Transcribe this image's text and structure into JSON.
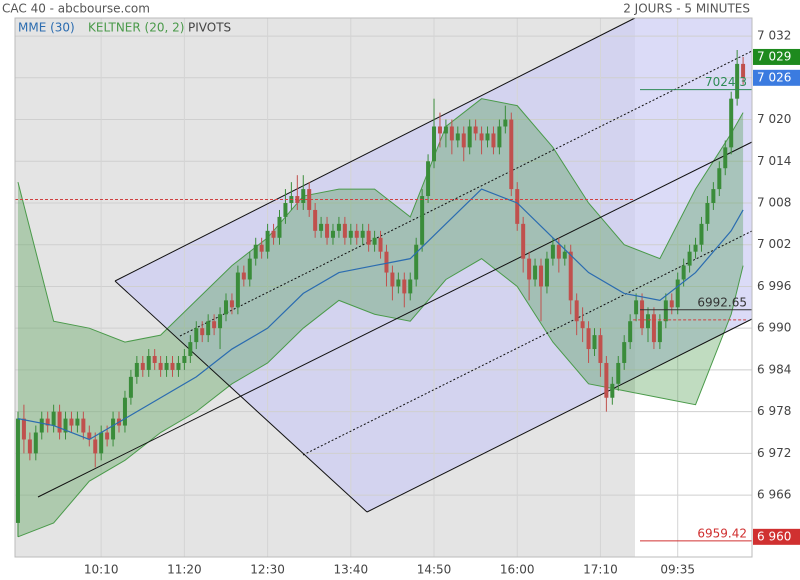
{
  "chart_data": {
    "type": "candlestick",
    "title": "CAC 40 - abcbourse.com",
    "subtitle": "2 JOURS - 5 MINUTES",
    "xlim": [
      -0.5,
      123.5
    ],
    "xticks": [
      {
        "value": 14,
        "label": "10:10"
      },
      {
        "value": 28,
        "label": "11:20"
      },
      {
        "value": 42,
        "label": "12:30"
      },
      {
        "value": 56,
        "label": "13:40"
      },
      {
        "value": 70,
        "label": "14:50"
      },
      {
        "value": 84,
        "label": "16:00"
      },
      {
        "value": 98,
        "label": "17:10"
      },
      {
        "value": 111,
        "label": "09:35"
      }
    ],
    "ylim": [
      6957.1,
      7034.6
    ],
    "yticks": [
      {
        "value": 6966,
        "label": "6 966"
      },
      {
        "value": 6972,
        "label": "6 972"
      },
      {
        "value": 6978,
        "label": "6 978"
      },
      {
        "value": 6984,
        "label": "6 984"
      },
      {
        "value": 6990,
        "label": "6 990"
      },
      {
        "value": 6996,
        "label": "6 996"
      },
      {
        "value": 7002,
        "label": "7 002"
      },
      {
        "value": 7008,
        "label": "7 008"
      },
      {
        "value": 7014,
        "label": "7 014"
      },
      {
        "value": 7020,
        "label": "7 020"
      },
      {
        "value": 7026,
        "label": "7 026"
      },
      {
        "value": 7032,
        "label": "7 032"
      }
    ],
    "grid": true,
    "up_color": "#3a8c3a",
    "down_color": "#c0504d",
    "candles": [
      [
        6962,
        6978,
        6960,
        6977
      ],
      [
        6977,
        6979,
        6972,
        6974
      ],
      [
        6974,
        6975,
        6971,
        6972
      ],
      [
        6972,
        6976,
        6971,
        6975
      ],
      [
        6975,
        6978,
        6974,
        6977
      ],
      [
        6977,
        6978,
        6975,
        6976
      ],
      [
        6976,
        6979,
        6975,
        6978
      ],
      [
        6978,
        6979,
        6974,
        6975
      ],
      [
        6975,
        6978,
        6974,
        6977
      ],
      [
        6977,
        6978,
        6975,
        6976
      ],
      [
        6976,
        6978,
        6975,
        6977
      ],
      [
        6977,
        6978,
        6974,
        6975
      ],
      [
        6975,
        6976,
        6973,
        6974
      ],
      [
        6974,
        6975,
        6970,
        6972
      ],
      [
        6972,
        6976,
        6971,
        6975
      ],
      [
        6975,
        6976,
        6973,
        6974
      ],
      [
        6974,
        6978,
        6973,
        6977
      ],
      [
        6977,
        6978,
        6975,
        6976
      ],
      [
        6976,
        6981,
        6975,
        6980
      ],
      [
        6980,
        6984,
        6979,
        6983
      ],
      [
        6983,
        6986,
        6982,
        6985
      ],
      [
        6985,
        6986,
        6983,
        6984
      ],
      [
        6984,
        6987,
        6983,
        6986
      ],
      [
        6986,
        6987,
        6984,
        6985
      ],
      [
        6985,
        6986,
        6983,
        6984
      ],
      [
        6984,
        6986,
        6983,
        6985
      ],
      [
        6985,
        6986,
        6983,
        6984
      ],
      [
        6984,
        6986,
        6983,
        6985
      ],
      [
        6985,
        6987,
        6984,
        6986
      ],
      [
        6986,
        6989,
        6985,
        6988
      ],
      [
        6988,
        6991,
        6987,
        6990
      ],
      [
        6990,
        6991,
        6988,
        6989
      ],
      [
        6989,
        6992,
        6988,
        6991
      ],
      [
        6991,
        6992,
        6989,
        6990
      ],
      [
        6990,
        6993,
        6987,
        6992
      ],
      [
        6992,
        6995,
        6991,
        6994
      ],
      [
        6994,
        6995,
        6992,
        6993
      ],
      [
        6993,
        6999,
        6992,
        6998
      ],
      [
        6998,
        6999,
        6996,
        6997
      ],
      [
        6997,
        7001,
        6996,
        7000
      ],
      [
        7000,
        7003,
        6999,
        7002
      ],
      [
        7002,
        7003,
        7000,
        7001
      ],
      [
        7001,
        7005,
        7000,
        7004
      ],
      [
        7004,
        7005,
        7002,
        7003
      ],
      [
        7003,
        7007,
        7002,
        7006
      ],
      [
        7006,
        7010,
        7005,
        7008
      ],
      [
        7008,
        7011,
        7007,
        7009
      ],
      [
        7009,
        7012,
        7007,
        7008
      ],
      [
        7008,
        7012,
        7007,
        7010
      ],
      [
        7010,
        7011,
        7006,
        7007
      ],
      [
        7007,
        7008,
        7003,
        7004
      ],
      [
        7004,
        7006,
        7003,
        7005
      ],
      [
        7005,
        7006,
        7002,
        7003
      ],
      [
        7003,
        7005,
        7002,
        7004
      ],
      [
        7004,
        7006,
        7003,
        7005
      ],
      [
        7005,
        7006,
        7002,
        7003
      ],
      [
        7003,
        7005,
        7002,
        7004
      ],
      [
        7004,
        7005,
        7002,
        7003
      ],
      [
        7003,
        7005,
        7002,
        7004
      ],
      [
        7004,
        7005,
        7001,
        7002
      ],
      [
        7002,
        7004,
        7001,
        7003
      ],
      [
        7003,
        7004,
        7000,
        7001
      ],
      [
        7001,
        7002,
        6996,
        6998
      ],
      [
        6998,
        6999,
        6994,
        6996
      ],
      [
        6996,
        6998,
        6995,
        6997
      ],
      [
        6997,
        6998,
        6993,
        6995
      ],
      [
        6995,
        6998,
        6994,
        6997
      ],
      [
        6997,
        7003,
        6996,
        7002
      ],
      [
        7002,
        7010,
        7001,
        7009
      ],
      [
        7009,
        7015,
        7008,
        7014
      ],
      [
        7014,
        7023,
        7013,
        7019
      ],
      [
        7019,
        7021,
        7016,
        7018
      ],
      [
        7018,
        7020,
        7016,
        7019
      ],
      [
        7019,
        7020,
        7015,
        7017
      ],
      [
        7017,
        7019,
        7016,
        7018
      ],
      [
        7018,
        7019,
        7014,
        7016
      ],
      [
        7016,
        7020,
        7015,
        7019
      ],
      [
        7019,
        7020,
        7017,
        7018
      ],
      [
        7018,
        7019,
        7015,
        7017
      ],
      [
        7017,
        7019,
        7016,
        7018
      ],
      [
        7018,
        7019,
        7015,
        7016
      ],
      [
        7016,
        7020,
        7015,
        7019
      ],
      [
        7019,
        7022,
        7018,
        7020
      ],
      [
        7020,
        7021,
        7009,
        7010
      ],
      [
        7010,
        7011,
        7004,
        7005
      ],
      [
        7005,
        7006,
        6998,
        7000
      ],
      [
        7000,
        7001,
        6994,
        6997
      ],
      [
        6997,
        7000,
        6996,
        6999
      ],
      [
        6999,
        7000,
        6991,
        6996
      ],
      [
        6996,
        7001,
        6995,
        7000
      ],
      [
        7000,
        7003,
        6999,
        7002
      ],
      [
        7002,
        7003,
        6998,
        7000
      ],
      [
        7000,
        7002,
        6999,
        7001
      ],
      [
        7001,
        7002,
        6992,
        6994
      ],
      [
        6994,
        6995,
        6989,
        6991
      ],
      [
        6991,
        6993,
        6988,
        6990
      ],
      [
        6990,
        6991,
        6985,
        6987
      ],
      [
        6987,
        6990,
        6986,
        6989
      ],
      [
        6989,
        6990,
        6983,
        6985
      ],
      [
        6985,
        6986,
        6978,
        6980
      ],
      [
        6980,
        6983,
        6979,
        6982
      ],
      [
        6982,
        6986,
        6981,
        6985
      ],
      [
        6985,
        6989,
        6984,
        6988
      ],
      [
        6988,
        6992,
        6987,
        6991
      ],
      [
        6992,
        6995,
        6991,
        6994
      ],
      [
        6994,
        6995,
        6989,
        6990
      ],
      [
        6990,
        6993,
        6988,
        6992
      ],
      [
        6992,
        6993,
        6987,
        6988
      ],
      [
        6988,
        6992,
        6987,
        6991
      ],
      [
        6991,
        6995,
        6990,
        6994
      ],
      [
        6994,
        6995,
        6992,
        6993
      ],
      [
        6993,
        6998,
        6992,
        6997
      ],
      [
        6997,
        7000,
        6996,
        6999
      ],
      [
        6999,
        7002,
        6998,
        7001
      ],
      [
        7001,
        7003,
        7000,
        7002
      ],
      [
        7002,
        7006,
        7001,
        7005
      ],
      [
        7005,
        7009,
        7004,
        7008
      ],
      [
        7008,
        7011,
        7007,
        7010
      ],
      [
        7010,
        7014,
        7009,
        7013
      ],
      [
        7013,
        7017,
        7012,
        7016
      ],
      [
        7016,
        7024,
        7015,
        7023
      ],
      [
        7023,
        7030,
        7022,
        7028
      ],
      [
        7028,
        7029,
        7025,
        7026
      ]
    ],
    "series": [
      {
        "name": "MME (30)",
        "color": "#2b6cb0",
        "x": [
          0,
          6,
          12,
          18,
          24,
          30,
          36,
          42,
          48,
          54,
          60,
          66,
          72,
          78,
          84,
          90,
          96,
          102,
          108,
          114,
          120,
          122
        ],
        "values": [
          6977,
          6976,
          6974,
          6977,
          6980,
          6983,
          6987,
          6990,
          6995,
          6998,
          6999,
          7000,
          7005,
          7010,
          7008,
          7003,
          6998,
          6995,
          6994,
          6998,
          7004,
          7007
        ]
      },
      {
        "name": "KELTNER (20, 2)",
        "color": "#4a9a4a",
        "x": [
          0,
          6,
          12,
          18,
          24,
          30,
          36,
          42,
          48,
          54,
          60,
          66,
          72,
          78,
          84,
          90,
          96,
          102,
          108,
          114,
          120,
          122
        ],
        "upper": [
          7011,
          6991,
          6990,
          6988,
          6989,
          6994,
          6999,
          7003,
          7009,
          7010,
          7010,
          7006,
          7019,
          7023,
          7022,
          7016,
          7008,
          7002,
          7000,
          7010,
          7018,
          7021
        ],
        "lower": [
          6960,
          6962,
          6968,
          6971,
          6975,
          6978,
          6982,
          6985,
          6990,
          6994,
          6992,
          6991,
          6997,
          7000,
          6996,
          6988,
          6982,
          6981,
          6980,
          6979,
          6992,
          6999
        ]
      }
    ],
    "pivots": {
      "name": "PIVOTS",
      "color": "#d04040",
      "lines": [
        {
          "value": 7008.5,
          "from": 0,
          "to": 103
        },
        {
          "value": 6991.2,
          "from": 104,
          "to": 122
        }
      ]
    },
    "price_lines": [
      {
        "value": 7024.3,
        "color": "#2e8b57"
      },
      {
        "value": 6992.65,
        "color": "#333333"
      },
      {
        "value": 6959.42,
        "color": "#d03030"
      }
    ],
    "badges": [
      {
        "value": 7029,
        "label": "7 029",
        "color": "#1e8a1e"
      },
      {
        "value": 7026,
        "label": "7 026",
        "color": "#3b7be0"
      },
      {
        "value": 6960,
        "label": "6 960",
        "color": "#d03030"
      }
    ]
  }
}
